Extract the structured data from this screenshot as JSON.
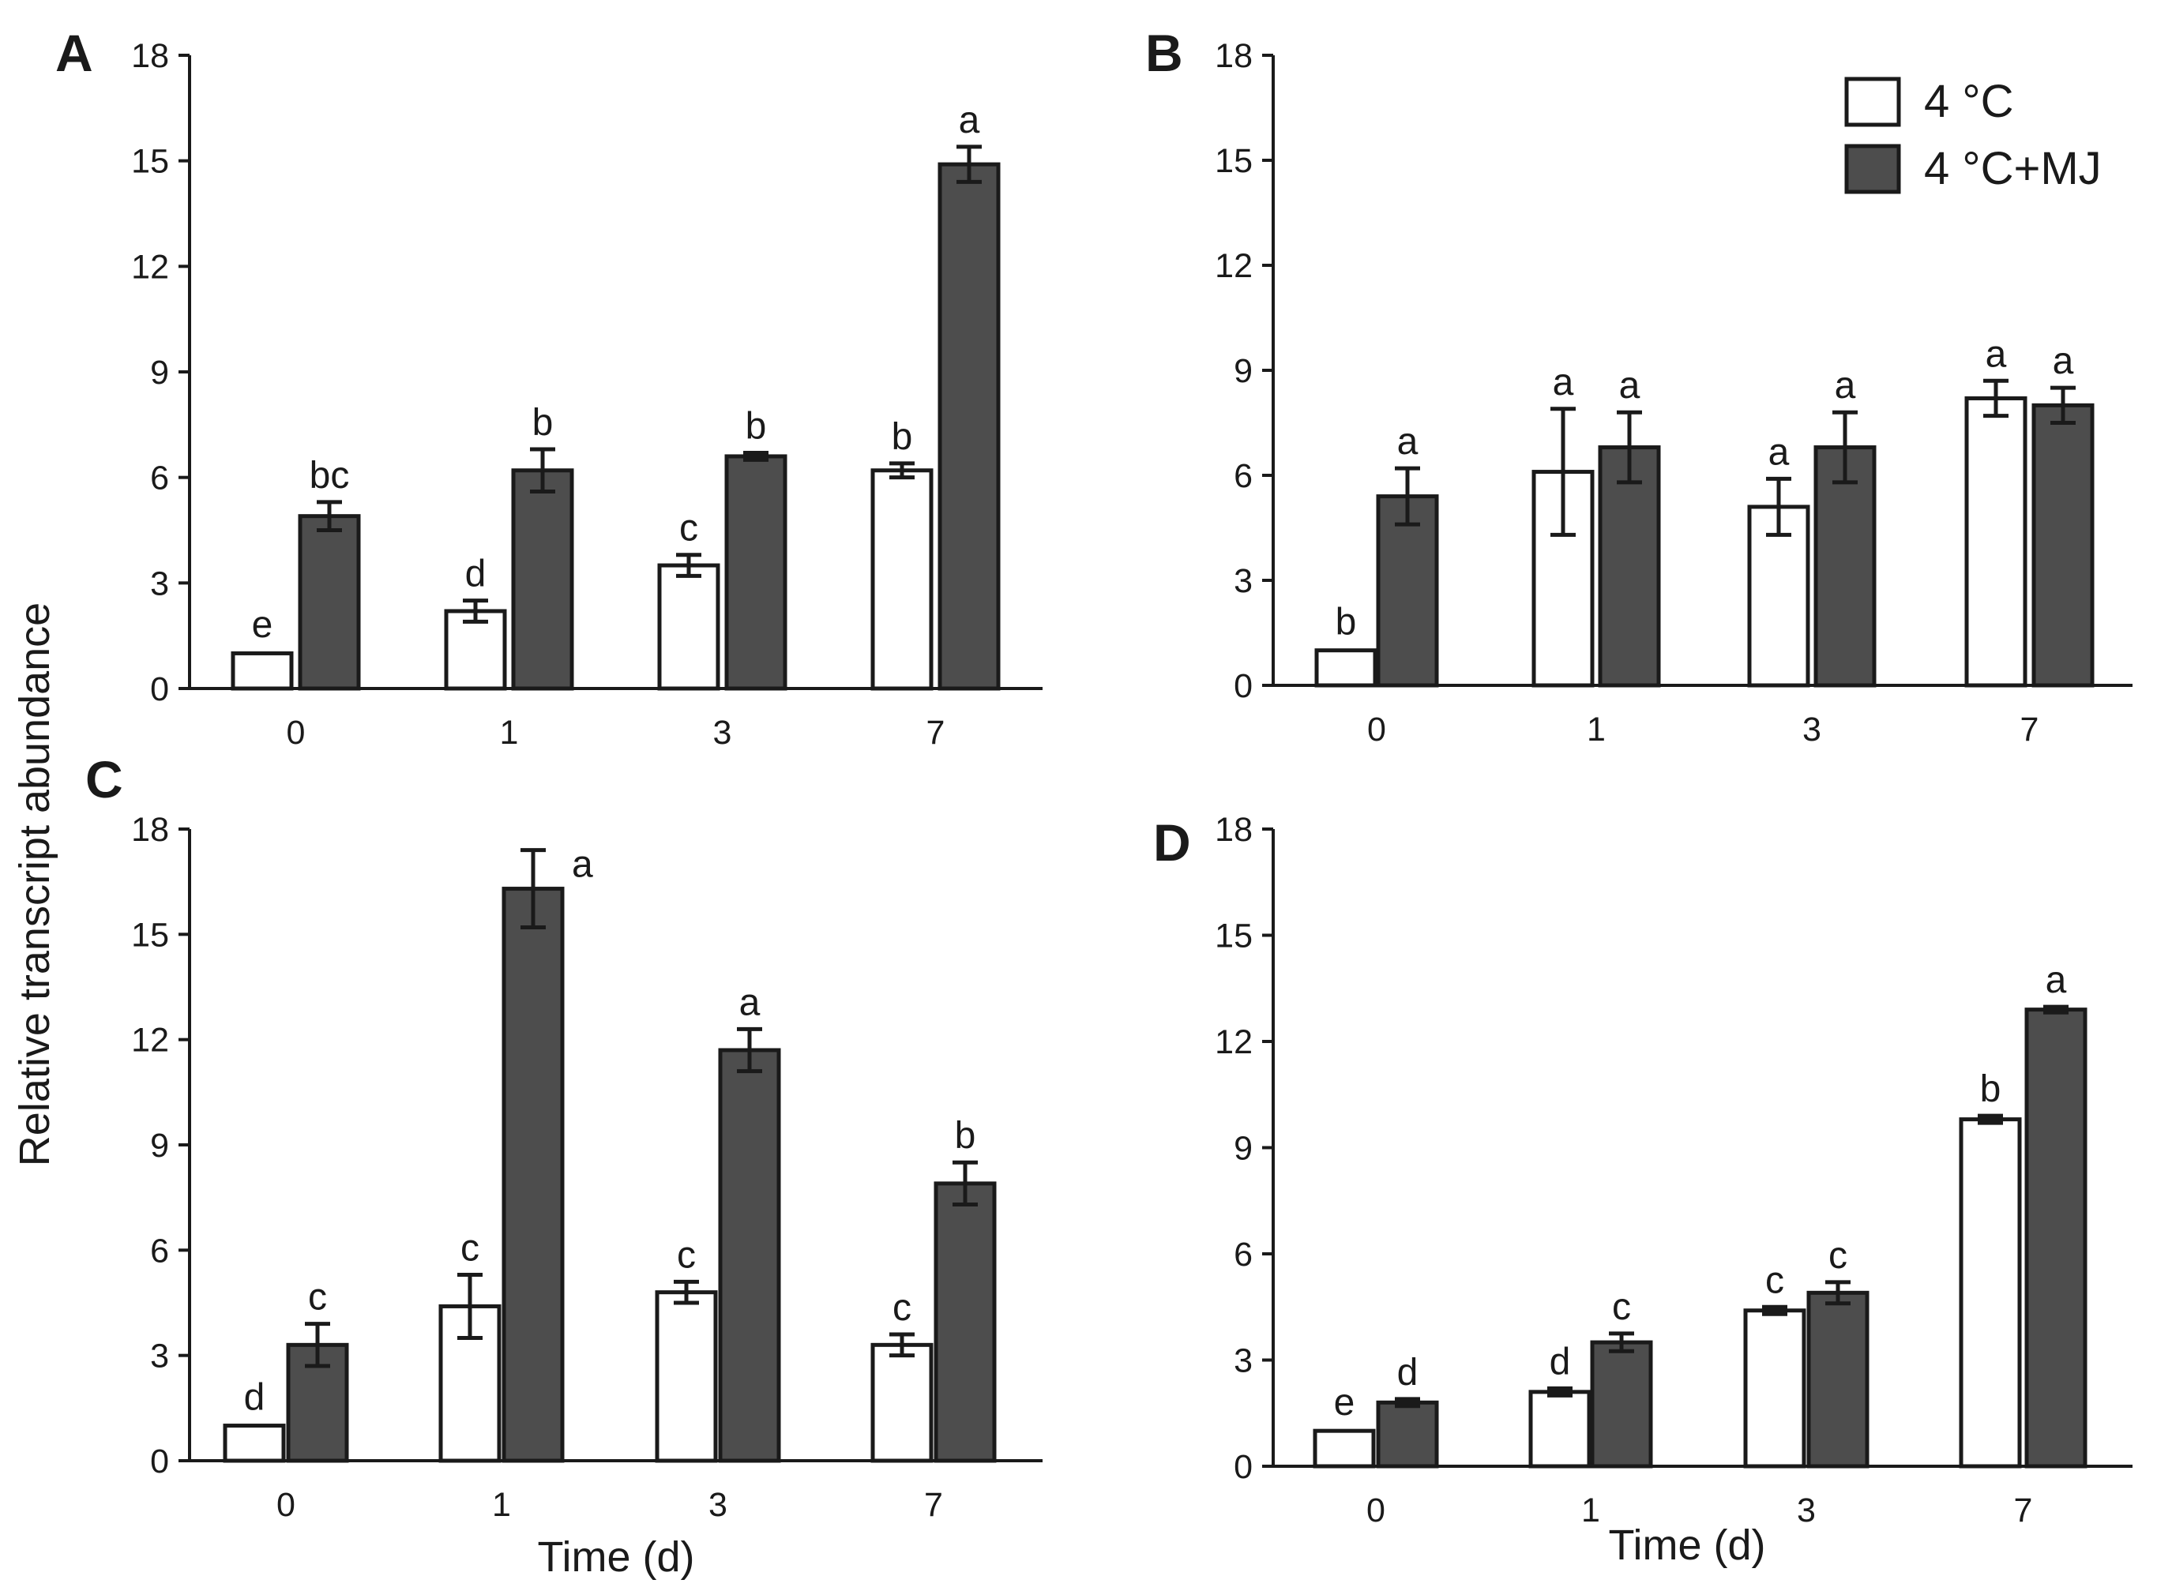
{
  "figure": {
    "ylabel": "Relative transcript abundance",
    "xlabel": "Time (d)"
  },
  "legend": {
    "items": [
      {
        "label": "4 °C",
        "color": "#ffffff"
      },
      {
        "label": "4 °C+MJ",
        "color": "#4d4d4d"
      }
    ]
  },
  "colors": {
    "control": "#ffffff",
    "treatment": "#4d4d4d",
    "ink": "#1a1a1a"
  },
  "chart_data": [
    {
      "type": "bar",
      "panel": "A",
      "categories": [
        "0",
        "1",
        "3",
        "7"
      ],
      "ylim": [
        0,
        18
      ],
      "yticks": [
        "0",
        "3",
        "6",
        "9",
        "12",
        "15",
        "18"
      ],
      "xlabel": "",
      "series": [
        {
          "name": "4 °C",
          "values": [
            1.0,
            2.2,
            3.5,
            6.2
          ],
          "errors": [
            0.05,
            0.3,
            0.3,
            0.2
          ],
          "letters": [
            "e",
            "d",
            "c",
            "b"
          ]
        },
        {
          "name": "4 °C+MJ",
          "values": [
            4.9,
            6.2,
            6.6,
            14.9
          ],
          "errors": [
            0.4,
            0.6,
            0.1,
            0.5
          ],
          "letters": [
            "bc",
            "b",
            "b",
            "a"
          ]
        }
      ]
    },
    {
      "type": "bar",
      "panel": "B",
      "categories": [
        "0",
        "1",
        "3",
        "7"
      ],
      "ylim": [
        0,
        18
      ],
      "yticks": [
        "0",
        "3",
        "6",
        "9",
        "12",
        "15",
        "18"
      ],
      "xlabel": "",
      "series": [
        {
          "name": "4 °C",
          "values": [
            1.0,
            6.1,
            5.1,
            8.2
          ],
          "errors": [
            0.05,
            1.8,
            0.8,
            0.5
          ],
          "letters": [
            "b",
            "a",
            "a",
            "a"
          ]
        },
        {
          "name": "4 °C+MJ",
          "values": [
            5.4,
            6.8,
            6.8,
            8.0
          ],
          "errors": [
            0.8,
            1.0,
            1.0,
            0.5
          ],
          "letters": [
            "a",
            "a",
            "a",
            "a"
          ]
        }
      ]
    },
    {
      "type": "bar",
      "panel": "C",
      "categories": [
        "0",
        "1",
        "3",
        "7"
      ],
      "ylim": [
        0,
        18
      ],
      "yticks": [
        "0",
        "3",
        "6",
        "9",
        "12",
        "15",
        "18"
      ],
      "xlabel": "Time (d)",
      "series": [
        {
          "name": "4 °C",
          "values": [
            1.0,
            4.4,
            4.8,
            3.3
          ],
          "errors": [
            0.05,
            0.9,
            0.3,
            0.3
          ],
          "letters": [
            "d",
            "c",
            "c",
            "c"
          ]
        },
        {
          "name": "4 °C+MJ",
          "values": [
            3.3,
            16.3,
            11.7,
            7.9
          ],
          "errors": [
            0.6,
            1.1,
            0.6,
            0.6
          ],
          "letters": [
            "c",
            "a",
            "a",
            "b"
          ]
        }
      ]
    },
    {
      "type": "bar",
      "panel": "D",
      "categories": [
        "0",
        "1",
        "3",
        "7"
      ],
      "ylim": [
        0,
        18
      ],
      "yticks": [
        "0",
        "3",
        "6",
        "9",
        "12",
        "15",
        "18"
      ],
      "xlabel": "Time (d)",
      "series": [
        {
          "name": "4 °C",
          "values": [
            1.0,
            2.1,
            4.4,
            9.8
          ],
          "errors": [
            0.05,
            0.1,
            0.1,
            0.1
          ],
          "letters": [
            "e",
            "d",
            "c",
            "b"
          ]
        },
        {
          "name": "4 °C+MJ",
          "values": [
            1.8,
            3.5,
            4.9,
            12.9
          ],
          "errors": [
            0.1,
            0.25,
            0.3,
            0.08
          ],
          "letters": [
            "d",
            "c",
            "c",
            "a"
          ]
        }
      ]
    }
  ]
}
